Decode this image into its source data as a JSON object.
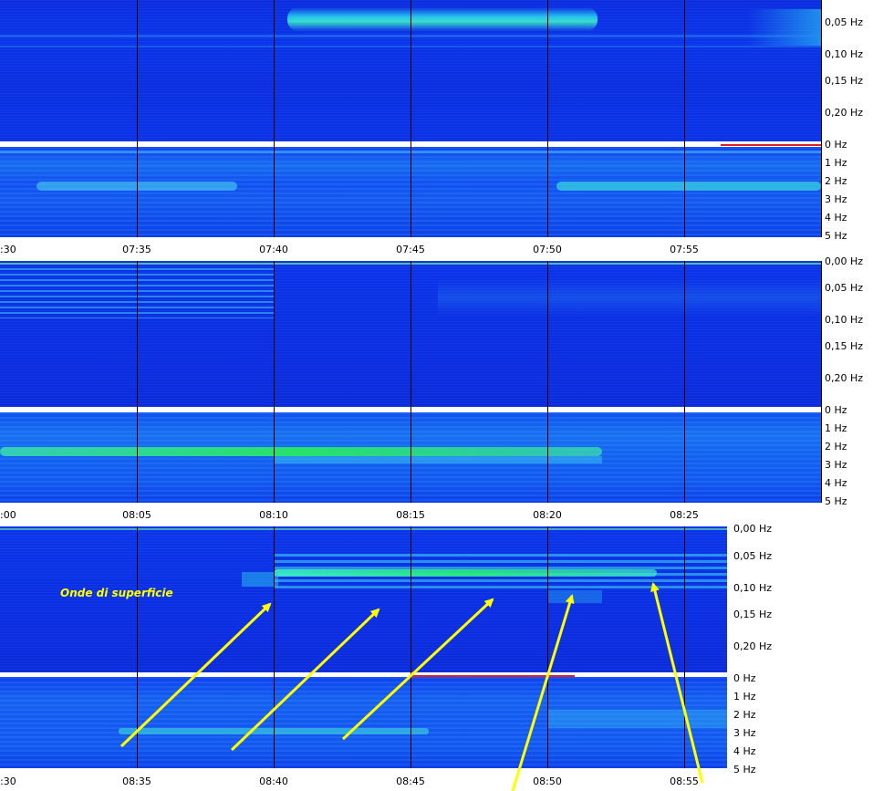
{
  "panels": [
    {
      "id": "panel-1",
      "low_freq_labels": [
        "0,05 Hz",
        "0,10 Hz",
        "0,15 Hz",
        "0,20 Hz"
      ],
      "high_freq_labels": [
        "0 Hz",
        "1 Hz",
        "2 Hz",
        "3 Hz",
        "4 Hz",
        "5 Hz"
      ],
      "time_labels": [
        ":30",
        "07:35",
        "07:40",
        "07:45",
        "07:50",
        "07:55"
      ]
    },
    {
      "id": "panel-2",
      "low_freq_labels": [
        "0,00 Hz",
        "0,05 Hz",
        "0,10 Hz",
        "0,15 Hz",
        "0,20 Hz"
      ],
      "high_freq_labels": [
        "0 Hz",
        "1 Hz",
        "2 Hz",
        "3 Hz",
        "4 Hz",
        "5 Hz"
      ],
      "time_labels": [
        ":00",
        "08:05",
        "08:10",
        "08:15",
        "08:20",
        "08:25"
      ]
    },
    {
      "id": "panel-3",
      "low_freq_labels": [
        "0,00 Hz",
        "0,05 Hz",
        "0,10 Hz",
        "0,15 Hz",
        "0,20 Hz"
      ],
      "high_freq_labels": [
        "0 Hz",
        "1 Hz",
        "2 Hz",
        "3 Hz",
        "4 Hz",
        "5 Hz"
      ],
      "time_labels": [
        ":30",
        "08:35",
        "08:40",
        "08:45",
        "08:50",
        "08:55"
      ]
    }
  ],
  "annotation": {
    "text": "Onde di superficie",
    "color": "#ffff00"
  },
  "colors": {
    "background": "#0a32e6",
    "cyan": "#28d2f0",
    "green": "#28f064",
    "separator": "#ffffff",
    "marker": "#e02020"
  }
}
